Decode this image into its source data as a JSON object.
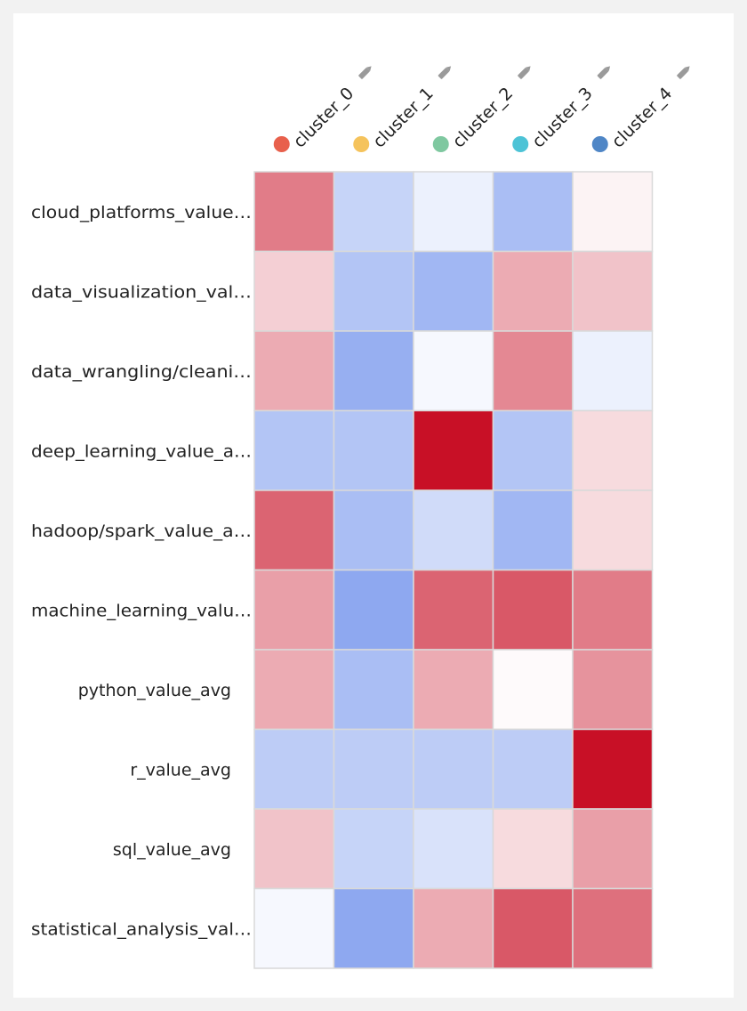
{
  "chart_data": {
    "type": "heatmap",
    "columns": [
      {
        "label": "cluster_0",
        "color": "#e8604c"
      },
      {
        "label": "cluster_1",
        "color": "#f5c35c"
      },
      {
        "label": "cluster_2",
        "color": "#7fc8a0"
      },
      {
        "label": "cluster_3",
        "color": "#4dc3d6"
      },
      {
        "label": "cluster_4",
        "color": "#4f86c6"
      }
    ],
    "rows": [
      "cloud_platforms_value…",
      "data_visualization_val…",
      "data_wrangling/cleani…",
      "deep_learning_value_a…",
      "hadoop/spark_value_a…",
      "machine_learning_valu…",
      "python_value_avg",
      "r_value_avg",
      "sql_value_avg",
      "statistical_analysis_val…"
    ],
    "values": [
      [
        0.55,
        -0.3,
        -0.1,
        -0.45,
        0.05
      ],
      [
        0.2,
        -0.4,
        -0.5,
        0.35,
        0.25
      ],
      [
        0.35,
        -0.55,
        -0.05,
        0.5,
        -0.1
      ],
      [
        -0.4,
        -0.4,
        1.0,
        -0.4,
        0.15
      ],
      [
        0.65,
        -0.45,
        -0.25,
        -0.5,
        0.15
      ],
      [
        0.4,
        -0.6,
        0.65,
        0.7,
        0.55
      ],
      [
        0.35,
        -0.45,
        0.35,
        0.02,
        0.45
      ],
      [
        -0.35,
        -0.35,
        -0.35,
        -0.35,
        1.0
      ],
      [
        0.25,
        -0.3,
        -0.2,
        0.15,
        0.4
      ],
      [
        -0.05,
        -0.6,
        0.35,
        0.7,
        0.6
      ]
    ],
    "vmin": -1,
    "vmax": 1,
    "colormap": "coolwarm",
    "grid": true,
    "legend": "column markers above each column"
  }
}
